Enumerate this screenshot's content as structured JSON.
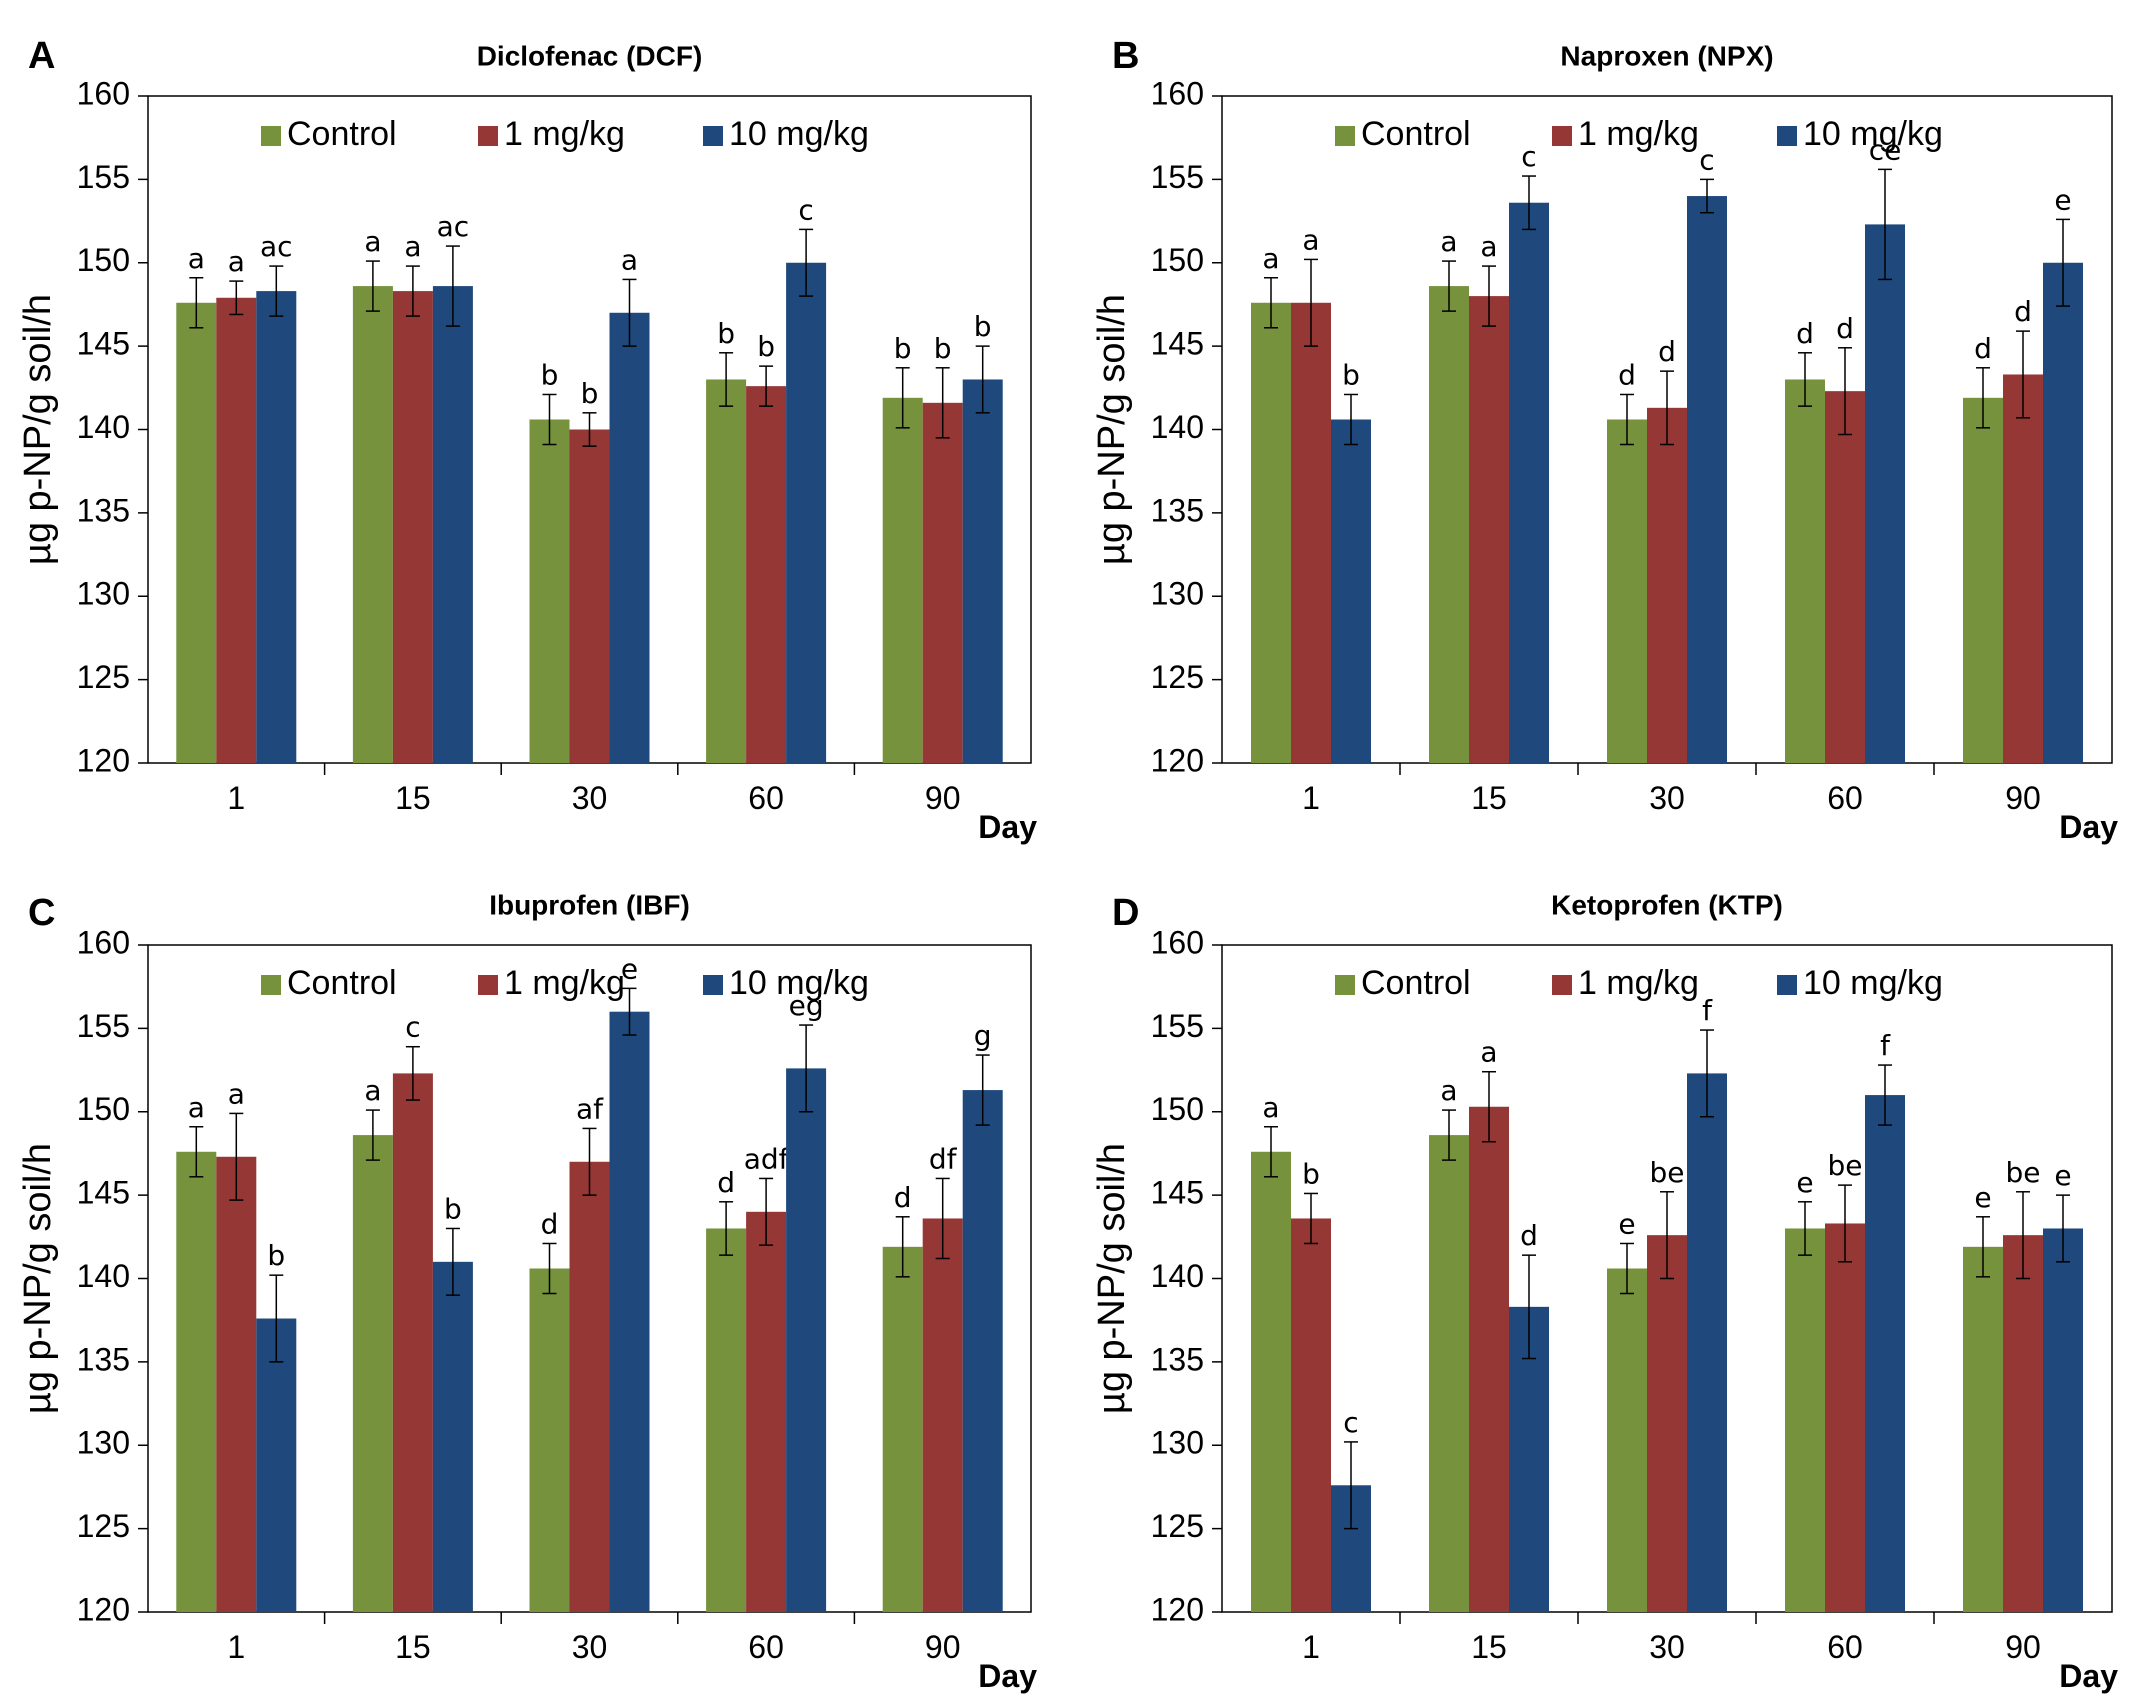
{
  "chart_data": [
    {
      "type": "bar",
      "panel": "A",
      "title": "Diclofenac (DCF)",
      "categories": [
        "1",
        "15",
        "30",
        "60",
        "90"
      ],
      "xlabel": "Day",
      "ylabel": "µg p-NP/g soil/h",
      "ylim": [
        120,
        160
      ],
      "yticks": [
        "120",
        "125",
        "130",
        "135",
        "140",
        "145",
        "150",
        "155",
        "160"
      ],
      "legend_position": "top",
      "series": [
        {
          "name": "Control",
          "color": "#76923c",
          "values": [
            147.6,
            148.6,
            140.6,
            143.0,
            141.9
          ],
          "errors": [
            1.5,
            1.5,
            1.5,
            1.6,
            1.8
          ],
          "labels": [
            "a",
            "a",
            "b",
            "b",
            "b"
          ]
        },
        {
          "name": "1 mg/kg",
          "color": "#953735",
          "values": [
            147.9,
            148.3,
            140.0,
            142.6,
            141.6
          ],
          "errors": [
            1.0,
            1.5,
            1.0,
            1.2,
            2.1
          ],
          "labels": [
            "a",
            "a",
            "b",
            "b",
            "b"
          ]
        },
        {
          "name": "10 mg/kg",
          "color": "#1f497d",
          "values": [
            148.3,
            148.6,
            147.0,
            150.0,
            143.0
          ],
          "errors": [
            1.5,
            2.4,
            2.0,
            2.0,
            2.0
          ],
          "labels": [
            "ac",
            "ac",
            "a",
            "c",
            "b"
          ]
        }
      ]
    },
    {
      "type": "bar",
      "panel": "B",
      "title": "Naproxen (NPX)",
      "categories": [
        "1",
        "15",
        "30",
        "60",
        "90"
      ],
      "xlabel": "Day",
      "ylabel": "µg p-NP/g soil/h",
      "ylim": [
        120,
        160
      ],
      "yticks": [
        "120",
        "125",
        "130",
        "135",
        "140",
        "145",
        "150",
        "155",
        "160"
      ],
      "legend_position": "top",
      "series": [
        {
          "name": "Control",
          "color": "#76923c",
          "values": [
            147.6,
            148.6,
            140.6,
            143.0,
            141.9
          ],
          "errors": [
            1.5,
            1.5,
            1.5,
            1.6,
            1.8
          ],
          "labels": [
            "a",
            "a",
            "d",
            "d",
            "d"
          ]
        },
        {
          "name": "1 mg/kg",
          "color": "#953735",
          "values": [
            147.6,
            148.0,
            141.3,
            142.3,
            143.3
          ],
          "errors": [
            2.6,
            1.8,
            2.2,
            2.6,
            2.6
          ],
          "labels": [
            "a",
            "a",
            "d",
            "d",
            "d"
          ]
        },
        {
          "name": "10 mg/kg",
          "color": "#1f497d",
          "values": [
            140.6,
            153.6,
            154.0,
            152.3,
            150.0
          ],
          "errors": [
            1.5,
            1.6,
            1.0,
            3.3,
            2.6
          ],
          "labels": [
            "b",
            "c",
            "c",
            "ce",
            "e"
          ]
        }
      ]
    },
    {
      "type": "bar",
      "panel": "C",
      "title": "Ibuprofen (IBF)",
      "categories": [
        "1",
        "15",
        "30",
        "60",
        "90"
      ],
      "xlabel": "Day",
      "ylabel": "µg p-NP/g soil/h",
      "ylim": [
        120,
        160
      ],
      "yticks": [
        "120",
        "125",
        "130",
        "135",
        "140",
        "145",
        "150",
        "155",
        "160"
      ],
      "legend_position": "top",
      "series": [
        {
          "name": "Control",
          "color": "#76923c",
          "values": [
            147.6,
            148.6,
            140.6,
            143.0,
            141.9
          ],
          "errors": [
            1.5,
            1.5,
            1.5,
            1.6,
            1.8
          ],
          "labels": [
            "a",
            "a",
            "d",
            "d",
            "d"
          ]
        },
        {
          "name": "1 mg/kg",
          "color": "#953735",
          "values": [
            147.3,
            152.3,
            147.0,
            144.0,
            143.6
          ],
          "errors": [
            2.6,
            1.6,
            2.0,
            2.0,
            2.4
          ],
          "labels": [
            "a",
            "c",
            "af",
            "adf",
            "df"
          ]
        },
        {
          "name": "10 mg/kg",
          "color": "#1f497d",
          "values": [
            137.6,
            141.0,
            156.0,
            152.6,
            151.3
          ],
          "errors": [
            2.6,
            2.0,
            1.4,
            2.6,
            2.1
          ],
          "labels": [
            "b",
            "b",
            "e",
            "eg",
            "g"
          ]
        }
      ]
    },
    {
      "type": "bar",
      "panel": "D",
      "title": "Ketoprofen (KTP)",
      "categories": [
        "1",
        "15",
        "30",
        "60",
        "90"
      ],
      "xlabel": "Day",
      "ylabel": "µg p-NP/g soil/h",
      "ylim": [
        120,
        160
      ],
      "yticks": [
        "120",
        "125",
        "130",
        "135",
        "140",
        "145",
        "150",
        "155",
        "160"
      ],
      "legend_position": "top",
      "series": [
        {
          "name": "Control",
          "color": "#76923c",
          "values": [
            147.6,
            148.6,
            140.6,
            143.0,
            141.9
          ],
          "errors": [
            1.5,
            1.5,
            1.5,
            1.6,
            1.8
          ],
          "labels": [
            "a",
            "a",
            "e",
            "e",
            "e"
          ]
        },
        {
          "name": "1 mg/kg",
          "color": "#953735",
          "values": [
            143.6,
            150.3,
            142.6,
            143.3,
            142.6
          ],
          "errors": [
            1.5,
            2.1,
            2.6,
            2.3,
            2.6
          ],
          "labels": [
            "b",
            "a",
            "be",
            "be",
            "be"
          ]
        },
        {
          "name": "10 mg/kg",
          "color": "#1f497d",
          "values": [
            127.6,
            138.3,
            152.3,
            151.0,
            143.0
          ],
          "errors": [
            2.6,
            3.1,
            2.6,
            1.8,
            2.0
          ],
          "labels": [
            "c",
            "d",
            "f",
            "f",
            "e"
          ]
        }
      ]
    }
  ]
}
